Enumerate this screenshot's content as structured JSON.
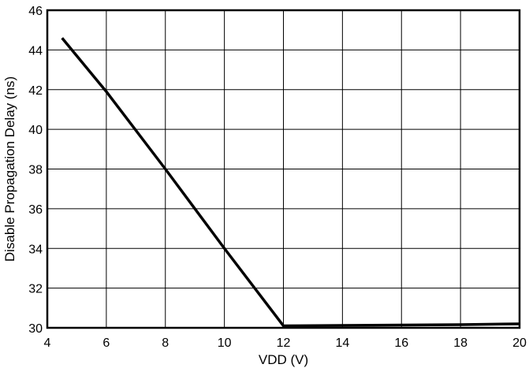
{
  "chart_data": {
    "type": "line",
    "title": "",
    "xlabel": "VDD (V)",
    "ylabel": "Disable Propagation Delay (ns)",
    "xlim": [
      4,
      20
    ],
    "ylim": [
      30,
      46
    ],
    "xticks": [
      4,
      6,
      8,
      10,
      12,
      14,
      16,
      18,
      20
    ],
    "yticks": [
      30,
      32,
      34,
      36,
      38,
      40,
      42,
      44,
      46
    ],
    "grid": true,
    "legend": "none",
    "series": [
      {
        "x": [
          4.5,
          6,
          8,
          10,
          12,
          14,
          16,
          18,
          20
        ],
        "y": [
          44.6,
          41.9,
          38.0,
          34.0,
          30.1,
          30.12,
          30.14,
          30.16,
          30.2
        ]
      }
    ]
  }
}
